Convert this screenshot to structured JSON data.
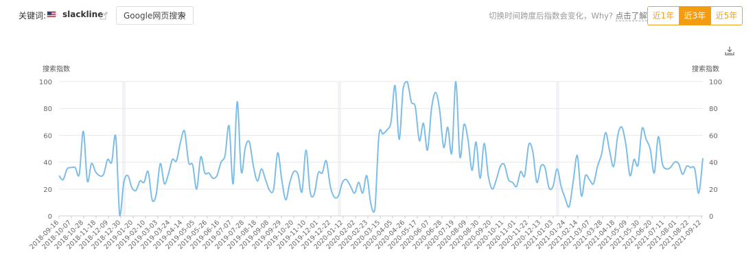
{
  "header": {
    "keyword_label": "关键词:",
    "keyword": "slackline",
    "engine": "Google网页搜索",
    "hint_text": "切换时间跨度后指数会变化，Why?",
    "hint_link": "点击了解",
    "ranges": [
      {
        "label": "近1年",
        "active": false
      },
      {
        "label": "近3年",
        "active": true
      },
      {
        "label": "近5年",
        "active": false
      }
    ]
  },
  "icons": {
    "flag": "us-flag-icon",
    "share": "share-icon",
    "dropdown": "chevron-down-icon",
    "download": "download-icon"
  },
  "colors": {
    "line": "#7cbde8",
    "accent": "#f39c12",
    "grid": "#e8e8e8",
    "band": "#f1f3f6"
  },
  "chart_data": {
    "type": "line",
    "ylabel_left": "搜索指数",
    "ylabel_right": "搜索指数",
    "ylim": [
      0,
      100
    ],
    "yticks": [
      0,
      20,
      40,
      60,
      80,
      100
    ],
    "grid": true,
    "x_tick_labels": [
      "2018-09-16",
      "2018-10-07",
      "2018-10-28",
      "2018-11-18",
      "2018-12-09",
      "2018-12-30",
      "2019-01-20",
      "2019-02-10",
      "2019-03-03",
      "2019-03-24",
      "2019-04-14",
      "2019-05-05",
      "2019-05-26",
      "2019-06-16",
      "2019-07-07",
      "2019-07-28",
      "2019-08-18",
      "2019-09-08",
      "2019-09-29",
      "2019-10-20",
      "2019-11-10",
      "2019-12-01",
      "2019-12-22",
      "2020-01-12",
      "2020-02-02",
      "2020-02-23",
      "2020-03-15",
      "2020-04-05",
      "2020-04-26",
      "2020-05-17",
      "2020-06-07",
      "2020-06-28",
      "2020-07-19",
      "2020-08-09",
      "2020-08-30",
      "2020-09-20",
      "2020-10-11",
      "2020-11-01",
      "2020-11-22",
      "2020-12-13",
      "2021-01-03",
      "2021-01-24",
      "2021-02-14",
      "2021-03-07",
      "2021-03-28",
      "2021-04-18",
      "2021-05-09",
      "2021-05-30",
      "2021-06-20",
      "2021-07-11",
      "2021-08-01",
      "2021-08-22",
      "2021-09-12"
    ],
    "series": [
      {
        "values": [
          30,
          27,
          35,
          36,
          36,
          31,
          63,
          26,
          39,
          33,
          30,
          31,
          42,
          40,
          59,
          0,
          25,
          30,
          21,
          19,
          26,
          25,
          33,
          12,
          16,
          39,
          24,
          31,
          42,
          41,
          55,
          63,
          40,
          38,
          20,
          44,
          32,
          32,
          28,
          30,
          40,
          45,
          67,
          24,
          85,
          33,
          51,
          55,
          37,
          26,
          35,
          27,
          19,
          20,
          47,
          27,
          12,
          25,
          33,
          31,
          18,
          49,
          18,
          16,
          32,
          32,
          41,
          22,
          14,
          15,
          25,
          27,
          22,
          17,
          25,
          17,
          30,
          9,
          5,
          60,
          61,
          64,
          70,
          97,
          57,
          95,
          100,
          85,
          81,
          56,
          69,
          49,
          80,
          92,
          79,
          51,
          66,
          47,
          100,
          44,
          68,
          57,
          34,
          55,
          28,
          54,
          30,
          20,
          27,
          37,
          38,
          27,
          25,
          22,
          33,
          30,
          53,
          48,
          25,
          37,
          36,
          21,
          22,
          35,
          22,
          13,
          7,
          26,
          45,
          15,
          30,
          27,
          24,
          37,
          46,
          62,
          48,
          37,
          60,
          66,
          53,
          30,
          42,
          38,
          65,
          57,
          50,
          32,
          59,
          39,
          35,
          36,
          40,
          39,
          31,
          37,
          36,
          35,
          17,
          43
        ]
      }
    ]
  }
}
